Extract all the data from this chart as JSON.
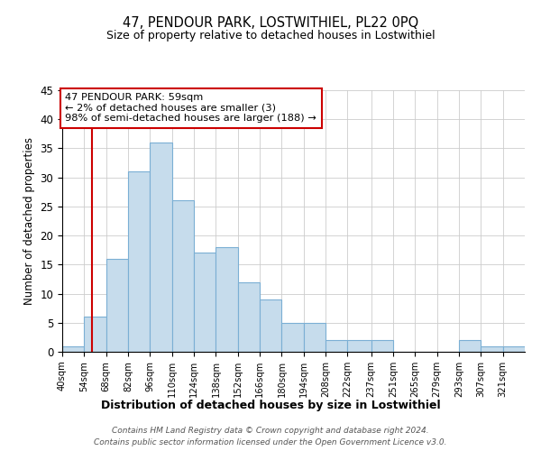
{
  "title_line1": "47, PENDOUR PARK, LOSTWITHIEL, PL22 0PQ",
  "title_line2": "Size of property relative to detached houses in Lostwithiel",
  "xlabel": "Distribution of detached houses by size in Lostwithiel",
  "ylabel": "Number of detached properties",
  "bin_labels": [
    "40sqm",
    "54sqm",
    "68sqm",
    "82sqm",
    "96sqm",
    "110sqm",
    "124sqm",
    "138sqm",
    "152sqm",
    "166sqm",
    "180sqm",
    "194sqm",
    "208sqm",
    "222sqm",
    "237sqm",
    "251sqm",
    "265sqm",
    "279sqm",
    "293sqm",
    "307sqm",
    "321sqm"
  ],
  "bar_heights": [
    1,
    6,
    16,
    31,
    36,
    26,
    17,
    18,
    12,
    9,
    5,
    5,
    2,
    2,
    2,
    0,
    0,
    0,
    2,
    1,
    1
  ],
  "bar_color": "#c6dcec",
  "bar_edge_color": "#7bafd4",
  "annotation_text": "47 PENDOUR PARK: 59sqm\n← 2% of detached houses are smaller (3)\n98% of semi-detached houses are larger (188) →",
  "annotation_box_color": "#ffffff",
  "annotation_box_edge_color": "#cc0000",
  "vline_color": "#cc0000",
  "ylim": [
    0,
    45
  ],
  "yticks": [
    0,
    5,
    10,
    15,
    20,
    25,
    30,
    35,
    40,
    45
  ],
  "bin_edges": [
    40,
    54,
    68,
    82,
    96,
    110,
    124,
    138,
    152,
    166,
    180,
    194,
    208,
    222,
    237,
    251,
    265,
    279,
    293,
    307,
    321,
    335
  ],
  "property_size": 59,
  "footer_line1": "Contains HM Land Registry data © Crown copyright and database right 2024.",
  "footer_line2": "Contains public sector information licensed under the Open Government Licence v3.0."
}
